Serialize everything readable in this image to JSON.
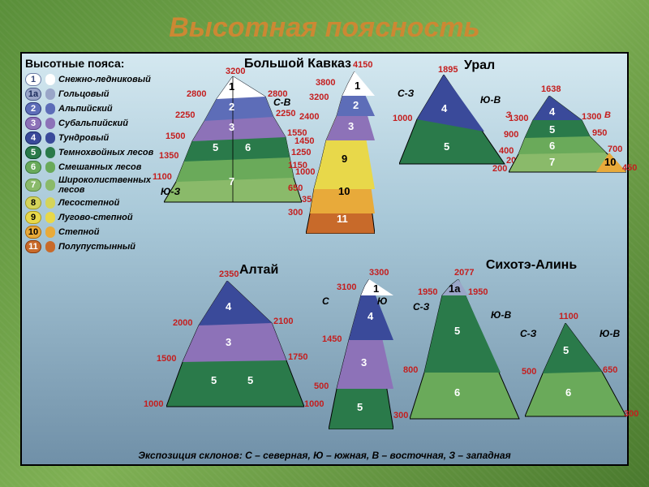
{
  "title": "Высотная поясность",
  "legend": {
    "title": "Высотные пояса:",
    "items": [
      {
        "num": "1",
        "label": "Снежно-ледниковый",
        "bg": "#ffffff",
        "border": "#6b7da6",
        "txt": "#3a4a7a"
      },
      {
        "num": "1а",
        "label": "Гольцовый",
        "bg": "#9aa6c8",
        "border": "#4a5a8a",
        "txt": "#1a2a5a"
      },
      {
        "num": "2",
        "label": "Альпийский",
        "bg": "#5d6db8",
        "border": "#2d3a7a",
        "txt": "#ffffff"
      },
      {
        "num": "3",
        "label": "Субальпийский",
        "bg": "#8d72b8",
        "border": "#5a3a8a",
        "txt": "#ffffff"
      },
      {
        "num": "4",
        "label": "Тундровый",
        "bg": "#3a4a9a",
        "border": "#1a2a6a",
        "txt": "#ffffff"
      },
      {
        "num": "5",
        "label": "Темнохвойных лесов",
        "bg": "#2a7a4a",
        "border": "#0a4a2a",
        "txt": "#ffffff"
      },
      {
        "num": "6",
        "label": "Смешанных лесов",
        "bg": "#6aaa5a",
        "border": "#3a7a3a",
        "txt": "#ffffff"
      },
      {
        "num": "7",
        "label": "Широколиственных лесов",
        "bg": "#8aba6a",
        "border": "#5a8a3a",
        "txt": "#ffffff"
      },
      {
        "num": "8",
        "label": "Лесостепной",
        "bg": "#d4d45a",
        "border": "#9a9a2a",
        "txt": "#000000"
      },
      {
        "num": "9",
        "label": "Лугово-степной",
        "bg": "#e8d84a",
        "border": "#aa9a1a",
        "txt": "#000000"
      },
      {
        "num": "10",
        "label": "Степной",
        "bg": "#e8aa3a",
        "border": "#aa6a0a",
        "txt": "#000000"
      },
      {
        "num": "11",
        "label": "Полупустынный",
        "bg": "#c86a2a",
        "border": "#8a3a0a",
        "txt": "#ffffff"
      }
    ]
  },
  "colors": {
    "z1": "#ffffff",
    "z1a": "#9aa6c8",
    "z2": "#5d6db8",
    "z3": "#8d72b8",
    "z4": "#3a4a9a",
    "z5": "#2a7a4a",
    "z6": "#6aaa5a",
    "z7": "#8aba6a",
    "z8": "#d4d45a",
    "z9": "#e8d84a",
    "z10": "#e8aa3a",
    "z11": "#c86a2a"
  },
  "mountains": {
    "kavkaz1": {
      "title": "Большой Кавказ",
      "dir_l": "Ю-З",
      "dir_r": "С-В",
      "peak": "3200",
      "heights_l": [
        "2800",
        "2250",
        "1500",
        "1350",
        "1100"
      ],
      "heights_r": [
        "2800",
        "2250",
        "1550",
        "1250",
        "1000",
        "350"
      ],
      "zones": [
        "1",
        "2",
        "3",
        "5",
        "6",
        "7"
      ]
    },
    "kavkaz2": {
      "peak": "4150",
      "heights_l": [
        "3800",
        "3200",
        "2400",
        "1450",
        "1150",
        "650",
        "300"
      ],
      "zones": [
        "1",
        "2",
        "3",
        "9",
        "10",
        "11"
      ]
    },
    "ural1": {
      "title": "Урал",
      "dir_l": "С-З",
      "dir_r": "Ю-В",
      "peak": "1895",
      "heights_l": [
        "1000"
      ],
      "heights_r": [
        "200"
      ],
      "zones": [
        "4",
        "5"
      ]
    },
    "ural2": {
      "peak": "1638",
      "dir_l": "З",
      "dir_r": "В",
      "heights_l": [
        "1300",
        "900",
        "400",
        "200"
      ],
      "heights_r": [
        "1300",
        "950",
        "700",
        "450"
      ],
      "zones": [
        "4",
        "5",
        "6",
        "7",
        "10"
      ]
    },
    "altai1": {
      "title": "Алтай",
      "peak": "2350",
      "heights_l": [
        "2000",
        "1500",
        "1000"
      ],
      "heights_r": [
        "2100",
        "1750",
        "1000"
      ],
      "zones": [
        "4",
        "3",
        "5"
      ]
    },
    "altai2": {
      "peak": "3300",
      "dir_l": "С",
      "dir_r": "Ю",
      "heights_l": [
        "3100",
        "1450",
        "500"
      ],
      "zones": [
        "1",
        "4",
        "3",
        "5"
      ]
    },
    "sikhote1": {
      "title": "Сихотэ-Алинь",
      "peak": "2077",
      "dir_l": "С-З",
      "dir_r": "Ю-В",
      "heights_l": [
        "1950",
        "800",
        "300"
      ],
      "heights_r": [
        "1950"
      ],
      "zones": [
        "1а",
        "5",
        "6"
      ]
    },
    "sikhote2": {
      "peak": "1100",
      "heights_l": [
        "500"
      ],
      "heights_r": [
        "650",
        "300"
      ],
      "zones": [
        "5",
        "6"
      ]
    }
  },
  "footer": "Экспозиция склонов: С – северная, Ю – южная, В – восточная, З – западная"
}
